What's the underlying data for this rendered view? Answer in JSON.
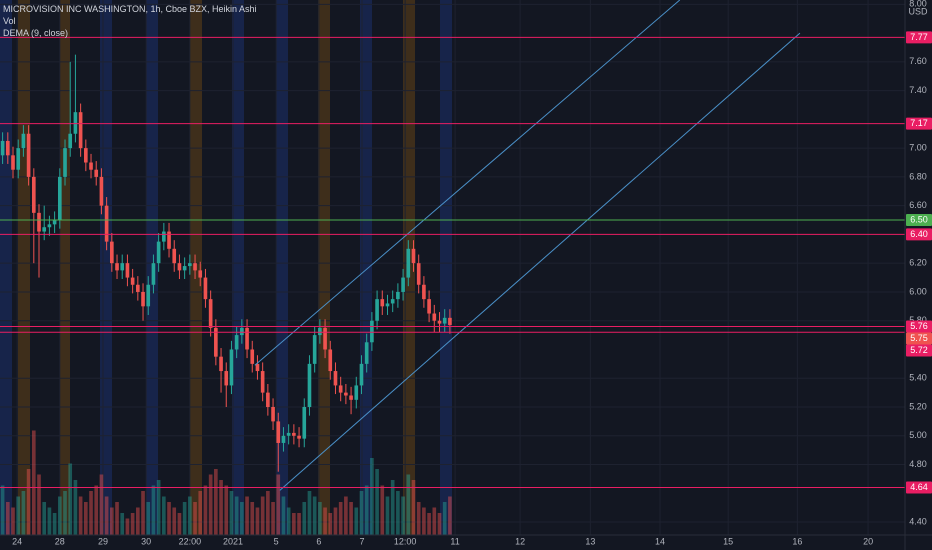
{
  "chart_data": {
    "type": "candlestick",
    "title": "MICROVISION INC WASHINGTON, 1h, Cboe BZX, Heikin Ashi",
    "indicators": [
      "Vol",
      "DEMA (9, close)"
    ],
    "currency": "USD",
    "up_color": "#26a69a",
    "down_color": "#ef5350",
    "xlim": [
      -0.5,
      173.5
    ],
    "ylim": [
      4.31,
      8.03
    ],
    "xticks": [
      {
        "value": 2.8,
        "label": "24"
      },
      {
        "value": 11.0,
        "label": "28"
      },
      {
        "value": 19.3,
        "label": "29"
      },
      {
        "value": 27.6,
        "label": "30"
      },
      {
        "value": 36.0,
        "label": "22:00"
      },
      {
        "value": 44.3,
        "label": "2021"
      },
      {
        "value": 52.6,
        "label": "5"
      },
      {
        "value": 60.8,
        "label": "6"
      },
      {
        "value": 69.1,
        "label": "7"
      },
      {
        "value": 77.4,
        "label": "12:00"
      },
      {
        "value": 87.0,
        "label": "11"
      },
      {
        "value": 99.5,
        "label": "12"
      },
      {
        "value": 113.0,
        "label": "13"
      },
      {
        "value": 126.4,
        "label": "14"
      },
      {
        "value": 139.5,
        "label": "15"
      },
      {
        "value": 152.8,
        "label": "16"
      },
      {
        "value": 166.4,
        "label": "20"
      }
    ],
    "yticks": [
      {
        "value": 8.0,
        "label": "8.00"
      },
      {
        "value": 7.6,
        "label": "7.60"
      },
      {
        "value": 7.4,
        "label": "7.40"
      },
      {
        "value": 7.0,
        "label": "7.00"
      },
      {
        "value": 6.8,
        "label": "6.80"
      },
      {
        "value": 6.6,
        "label": "6.60"
      },
      {
        "value": 6.2,
        "label": "6.20"
      },
      {
        "value": 6.0,
        "label": "6.00"
      },
      {
        "value": 5.8,
        "label": "5.80"
      },
      {
        "value": 5.4,
        "label": "5.40"
      },
      {
        "value": 5.2,
        "label": "5.20"
      },
      {
        "value": 5.0,
        "label": "5.00"
      },
      {
        "value": 4.8,
        "label": "4.80"
      },
      {
        "value": 4.4,
        "label": "4.40"
      }
    ],
    "open": [
      6.95,
      7.05,
      6.95,
      6.85,
      7.0,
      7.1,
      6.8,
      6.55,
      6.42,
      6.45,
      6.47,
      6.5,
      6.8,
      7.0,
      7.1,
      7.25,
      7.0,
      6.9,
      6.85,
      6.8,
      6.6,
      6.35,
      6.2,
      6.15,
      6.2,
      6.1,
      6.05,
      6.0,
      5.9,
      6.05,
      6.2,
      6.35,
      6.42,
      6.3,
      6.2,
      6.15,
      6.18,
      6.2,
      6.15,
      6.1,
      5.95,
      5.75,
      5.55,
      5.45,
      5.35,
      5.6,
      5.7,
      5.75,
      5.6,
      5.5,
      5.45,
      5.3,
      5.2,
      5.1,
      4.95,
      5.0,
      5.02,
      5.0,
      4.98,
      5.2,
      5.5,
      5.7,
      5.75,
      5.6,
      5.45,
      5.35,
      5.3,
      5.28,
      5.25,
      5.35,
      5.5,
      5.65,
      5.8,
      5.95,
      5.9,
      5.92,
      5.95,
      6.0,
      6.1,
      6.3,
      6.2,
      6.05,
      5.95,
      5.85,
      5.8,
      5.78,
      5.82
    ],
    "high": [
      7.11,
      7.11,
      7.01,
      7.06,
      7.16,
      7.16,
      6.86,
      6.61,
      6.6,
      6.53,
      6.56,
      6.86,
      7.06,
      7.6,
      7.65,
      7.31,
      7.06,
      6.96,
      6.91,
      6.86,
      6.66,
      6.41,
      6.26,
      6.26,
      6.26,
      6.16,
      6.11,
      6.06,
      6.11,
      6.26,
      6.41,
      6.48,
      6.48,
      6.36,
      6.26,
      6.24,
      6.26,
      6.26,
      6.21,
      6.16,
      6.01,
      5.81,
      5.61,
      5.51,
      5.66,
      5.76,
      5.81,
      5.81,
      5.66,
      5.56,
      5.51,
      5.36,
      5.26,
      5.16,
      5.06,
      5.08,
      5.08,
      5.06,
      5.26,
      5.56,
      5.76,
      5.81,
      5.81,
      5.66,
      5.51,
      5.41,
      5.36,
      5.34,
      5.41,
      5.56,
      5.71,
      5.86,
      6.01,
      6.01,
      5.98,
      6.01,
      6.06,
      6.16,
      6.36,
      6.36,
      6.26,
      6.11,
      6.01,
      5.91,
      5.86,
      5.88,
      5.88
    ],
    "low": [
      6.89,
      6.89,
      6.79,
      6.79,
      6.94,
      6.74,
      6.2,
      6.1,
      6.36,
      6.39,
      6.41,
      6.44,
      6.74,
      6.94,
      7.04,
      6.94,
      6.84,
      6.79,
      6.74,
      6.54,
      6.29,
      6.14,
      6.09,
      6.09,
      6.04,
      5.99,
      5.94,
      5.8,
      5.84,
      5.99,
      6.14,
      6.29,
      6.24,
      6.14,
      6.09,
      6.09,
      6.12,
      6.09,
      6.04,
      5.89,
      5.69,
      5.49,
      5.3,
      5.2,
      5.29,
      5.54,
      5.64,
      5.54,
      5.44,
      5.39,
      5.24,
      5.14,
      5.04,
      4.75,
      4.89,
      4.94,
      4.94,
      4.92,
      4.92,
      5.14,
      5.44,
      5.64,
      5.54,
      5.39,
      5.29,
      5.24,
      5.22,
      5.15,
      5.19,
      5.29,
      5.44,
      5.59,
      5.74,
      5.84,
      5.84,
      5.86,
      5.89,
      5.94,
      6.04,
      6.14,
      5.99,
      5.89,
      5.79,
      5.72,
      5.72,
      5.72,
      5.71
    ],
    "close": [
      7.05,
      6.95,
      6.85,
      7.0,
      7.1,
      6.8,
      6.55,
      6.42,
      6.45,
      6.47,
      6.5,
      6.8,
      7.0,
      7.1,
      7.25,
      7.0,
      6.9,
      6.85,
      6.8,
      6.6,
      6.35,
      6.2,
      6.15,
      6.2,
      6.1,
      6.05,
      6.0,
      5.9,
      6.05,
      6.2,
      6.35,
      6.42,
      6.3,
      6.2,
      6.15,
      6.18,
      6.2,
      6.15,
      6.1,
      5.95,
      5.75,
      5.55,
      5.45,
      5.35,
      5.6,
      5.7,
      5.75,
      5.6,
      5.5,
      5.45,
      5.3,
      5.2,
      5.1,
      4.95,
      5.0,
      5.02,
      5.0,
      4.98,
      5.2,
      5.5,
      5.7,
      5.75,
      5.6,
      5.45,
      5.35,
      5.3,
      5.28,
      5.25,
      5.35,
      5.5,
      5.65,
      5.8,
      5.95,
      5.9,
      5.92,
      5.95,
      6.0,
      6.1,
      6.3,
      6.2,
      6.05,
      5.95,
      5.85,
      5.8,
      5.78,
      5.82,
      5.77
    ],
    "volume": [
      45,
      30,
      25,
      35,
      40,
      60,
      95,
      55,
      30,
      25,
      20,
      35,
      40,
      65,
      50,
      35,
      30,
      40,
      45,
      55,
      35,
      25,
      30,
      20,
      15,
      20,
      25,
      40,
      30,
      45,
      50,
      35,
      30,
      25,
      20,
      30,
      35,
      30,
      40,
      45,
      55,
      60,
      50,
      45,
      40,
      35,
      30,
      35,
      30,
      25,
      35,
      40,
      30,
      55,
      35,
      25,
      20,
      20,
      30,
      40,
      35,
      30,
      25,
      20,
      25,
      30,
      35,
      30,
      25,
      40,
      45,
      70,
      60,
      45,
      35,
      50,
      40,
      35,
      55,
      50,
      30,
      25,
      20,
      25,
      20,
      30,
      35
    ],
    "levels": [
      {
        "value": 7.77,
        "color": "#e91e63"
      },
      {
        "value": 7.17,
        "color": "#e91e63"
      },
      {
        "value": 6.5,
        "label": "6.50",
        "color": "#4caf50"
      },
      {
        "value": 6.4,
        "label": "6.40",
        "color": "#e91e63"
      },
      {
        "value": 5.76,
        "color": "#e91e63"
      },
      {
        "value": 5.75,
        "color": "#ef5350",
        "line": false
      },
      {
        "value": 5.72,
        "color": "#e91e63"
      },
      {
        "value": 4.64,
        "color": "#e91e63"
      }
    ],
    "trendlines": [
      {
        "x": [
          48.5,
          130.2
        ],
        "y": [
          5.49,
          8.03
        ],
        "color": "#4a90c8"
      },
      {
        "x": [
          53.3,
          153.3
        ],
        "y": [
          4.62,
          7.8
        ],
        "color": "#4a90c8"
      }
    ]
  }
}
